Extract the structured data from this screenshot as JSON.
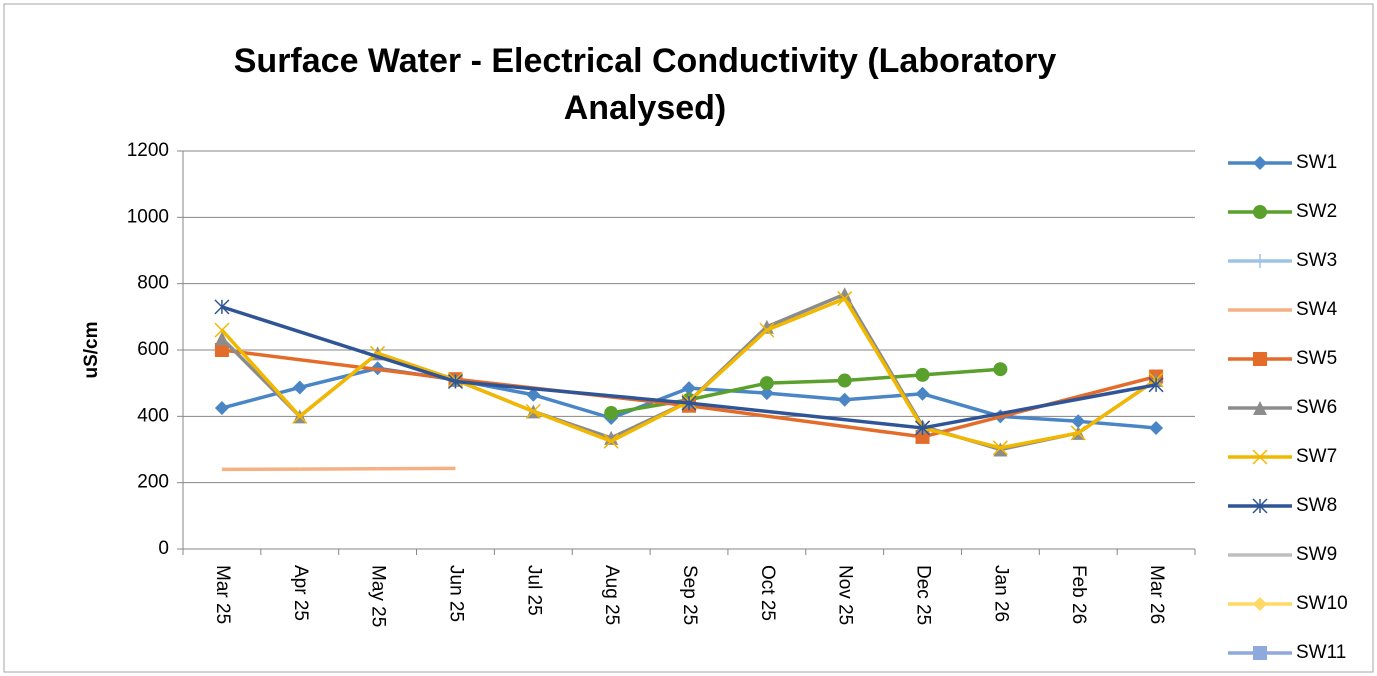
{
  "chart_data": {
    "type": "line",
    "title": "Surface Water -  Electrical Conductivity (Laboratory Analysed)",
    "y_label": "uS/cm",
    "categories": [
      "Mar 25",
      "Apr 25",
      "May 25",
      "Jun 25",
      "Jul 25",
      "Aug 25",
      "Sep 25",
      "Oct 25",
      "Nov 25",
      "Dec 25",
      "Jan 26",
      "Feb 26",
      "Mar 26"
    ],
    "ylim": [
      0,
      1200
    ],
    "yticks": [
      0,
      200,
      400,
      600,
      800,
      1000,
      1200
    ],
    "grid": true,
    "legend": "right",
    "series": [
      {
        "name": "SW1",
        "color": "#4a86c5",
        "marker": "diamond",
        "values": [
          425,
          487,
          545,
          510,
          465,
          395,
          485,
          470,
          450,
          468,
          400,
          385,
          365
        ]
      },
      {
        "name": "SW2",
        "color": "#5aa02c",
        "marker": "circle",
        "values": [
          null,
          null,
          null,
          null,
          null,
          410,
          450,
          500,
          508,
          525,
          542,
          null,
          null
        ]
      },
      {
        "name": "SW3",
        "color": "#9dc3e6",
        "marker": "plus",
        "values": [
          null,
          null,
          null,
          null,
          null,
          null,
          null,
          null,
          null,
          null,
          null,
          null,
          null
        ]
      },
      {
        "name": "SW4",
        "color": "#f4b183",
        "marker": "dash",
        "values": [
          240,
          241,
          242,
          243,
          null,
          null,
          null,
          null,
          null,
          null,
          null,
          null,
          null
        ]
      },
      {
        "name": "SW5",
        "color": "#e46c2a",
        "marker": "square",
        "values": [
          600,
          null,
          null,
          512,
          null,
          null,
          432,
          null,
          null,
          338,
          null,
          null,
          520
        ]
      },
      {
        "name": "SW6",
        "color": "#8c8c8c",
        "marker": "triangle",
        "values": [
          635,
          400,
          590,
          510,
          415,
          335,
          445,
          670,
          768,
          370,
          300,
          350,
          510
        ]
      },
      {
        "name": "SW7",
        "color": "#f2b800",
        "marker": "x",
        "values": [
          660,
          400,
          590,
          510,
          415,
          325,
          445,
          660,
          755,
          365,
          305,
          350,
          510
        ]
      },
      {
        "name": "SW8",
        "color": "#2f5597",
        "marker": "asterisk",
        "values": [
          730,
          null,
          null,
          505,
          null,
          null,
          440,
          null,
          null,
          365,
          null,
          null,
          495
        ]
      },
      {
        "name": "SW9",
        "color": "#bfbfbf",
        "marker": "none",
        "values": [
          null,
          null,
          null,
          null,
          null,
          null,
          null,
          null,
          null,
          null,
          null,
          null,
          null
        ]
      },
      {
        "name": "SW10",
        "color": "#ffd966",
        "marker": "diamond",
        "values": [
          null,
          null,
          null,
          null,
          null,
          null,
          null,
          null,
          null,
          null,
          null,
          null,
          null
        ]
      },
      {
        "name": "SW11",
        "color": "#8ea9db",
        "marker": "square",
        "values": [
          null,
          null,
          null,
          null,
          null,
          null,
          null,
          null,
          null,
          null,
          null,
          null,
          null
        ]
      }
    ]
  }
}
